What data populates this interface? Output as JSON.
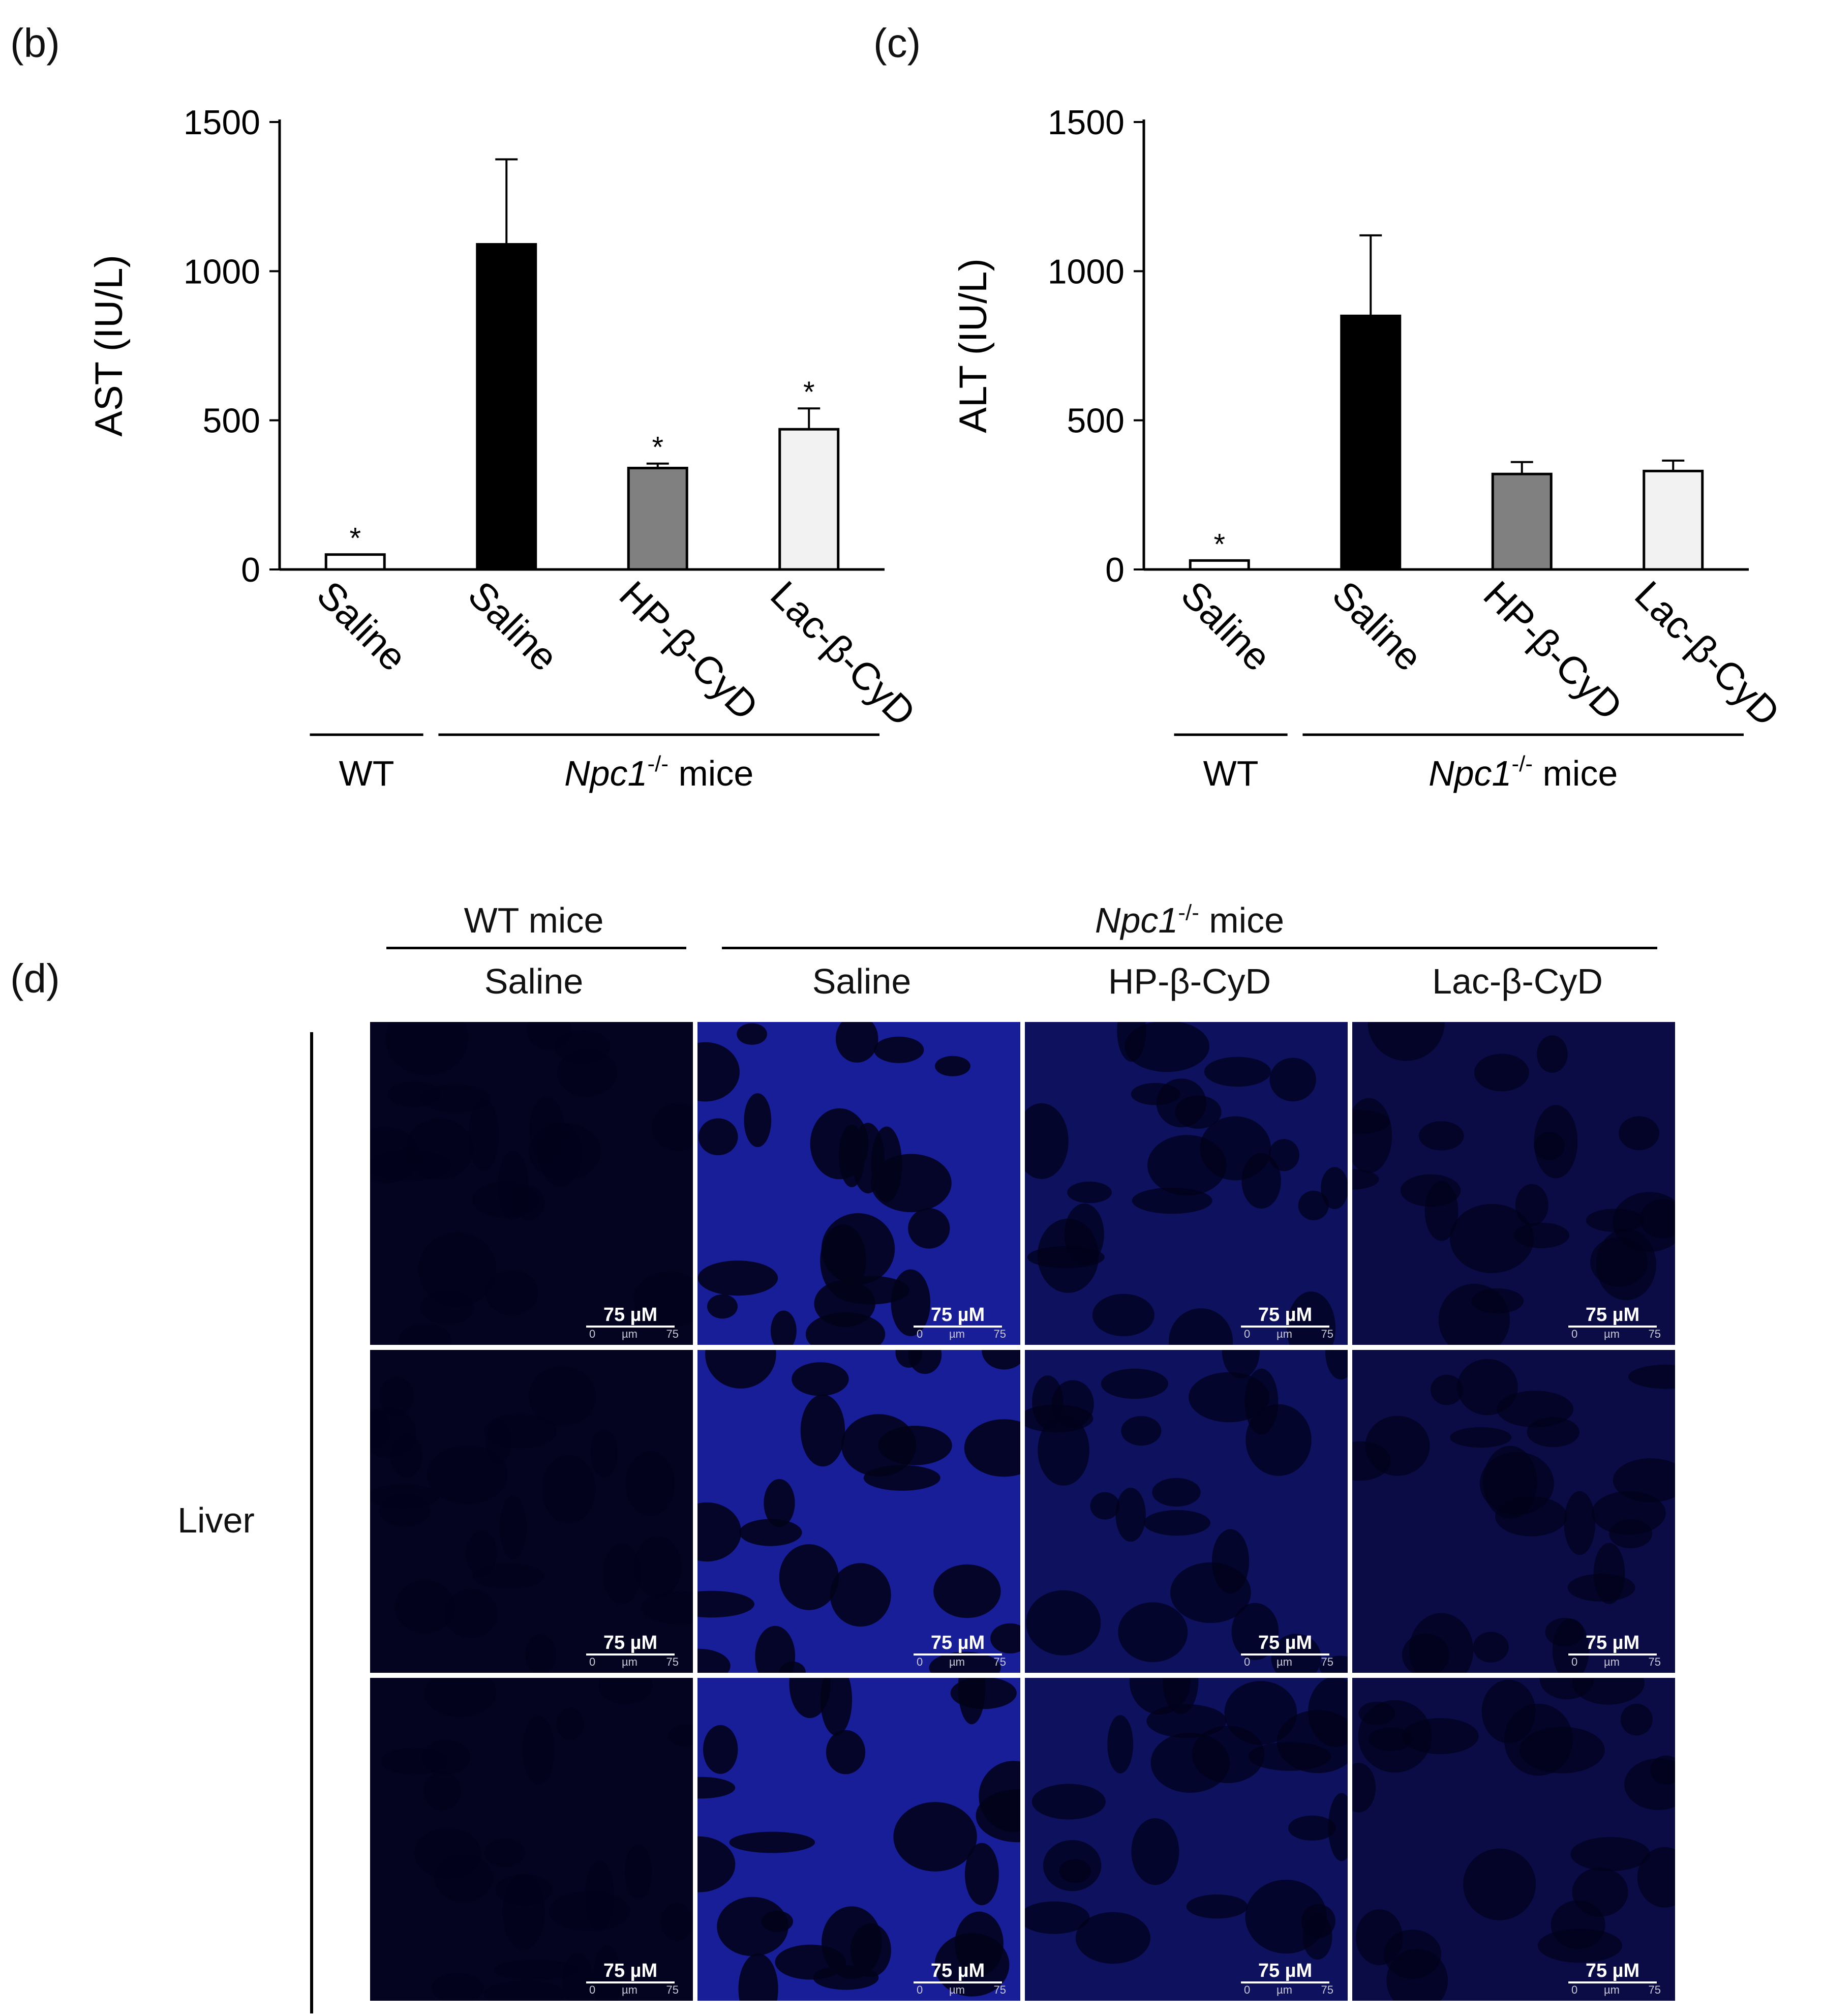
{
  "panels": {
    "b": {
      "letter": "(b)"
    },
    "c": {
      "letter": "(c)"
    },
    "d": {
      "letter": "(d)"
    }
  },
  "chart_data": [
    {
      "panel": "(b)",
      "type": "bar",
      "title": "",
      "ylabel": "AST (IU/L)",
      "xlabel": "",
      "ylim": [
        0,
        1500
      ],
      "yticks": [
        0,
        500,
        1000,
        1500
      ],
      "categories": [
        "Saline",
        "Saline",
        "HP-β-CyD",
        "Lac-β-CyD"
      ],
      "values": [
        50,
        1090,
        340,
        470
      ],
      "errors": [
        0,
        285,
        15,
        70
      ],
      "significance": [
        "*",
        "",
        "*",
        "*"
      ],
      "bar_colors": [
        "#ffffff",
        "#000000",
        "#808080",
        "#f2f2f2"
      ],
      "groups": [
        {
          "label": "WT",
          "italic": "",
          "sup": "",
          "suffix": ""
        },
        {
          "label": "",
          "italic": "Npc1",
          "sup": "-/-",
          "suffix": " mice"
        }
      ]
    },
    {
      "panel": "(c)",
      "type": "bar",
      "title": "",
      "ylabel": "ALT (IU/L)",
      "xlabel": "",
      "ylim": [
        0,
        1500
      ],
      "yticks": [
        0,
        500,
        1000,
        1500
      ],
      "categories": [
        "Saline",
        "Saline",
        "HP-β-CyD",
        "Lac-β-CyD"
      ],
      "values": [
        30,
        850,
        320,
        330
      ],
      "errors": [
        0,
        270,
        40,
        35
      ],
      "significance": [
        "*",
        "",
        "",
        ""
      ],
      "bar_colors": [
        "#ffffff",
        "#000000",
        "#808080",
        "#f2f2f2"
      ],
      "groups": [
        {
          "label": "WT",
          "italic": "",
          "sup": "",
          "suffix": ""
        },
        {
          "label": "",
          "italic": "Npc1",
          "sup": "-/-",
          "suffix": " mice"
        }
      ]
    }
  ],
  "micrograph": {
    "group_headers": {
      "wt": "WT mice",
      "npc_italic": "Npc1",
      "npc_sup": "-/-",
      "npc_suffix": " mice"
    },
    "columns": [
      "Saline",
      "Saline",
      "HP-β-CyD",
      "Lac-β-CyD"
    ],
    "row_label": "Liver",
    "scale_label": "75 µM",
    "scale_tick_start": "0",
    "scale_tick_unit": "µm",
    "scale_tick_end": "75",
    "column_intensity": [
      0.04,
      0.85,
      0.45,
      0.3
    ],
    "tint": "#2a33ff"
  }
}
